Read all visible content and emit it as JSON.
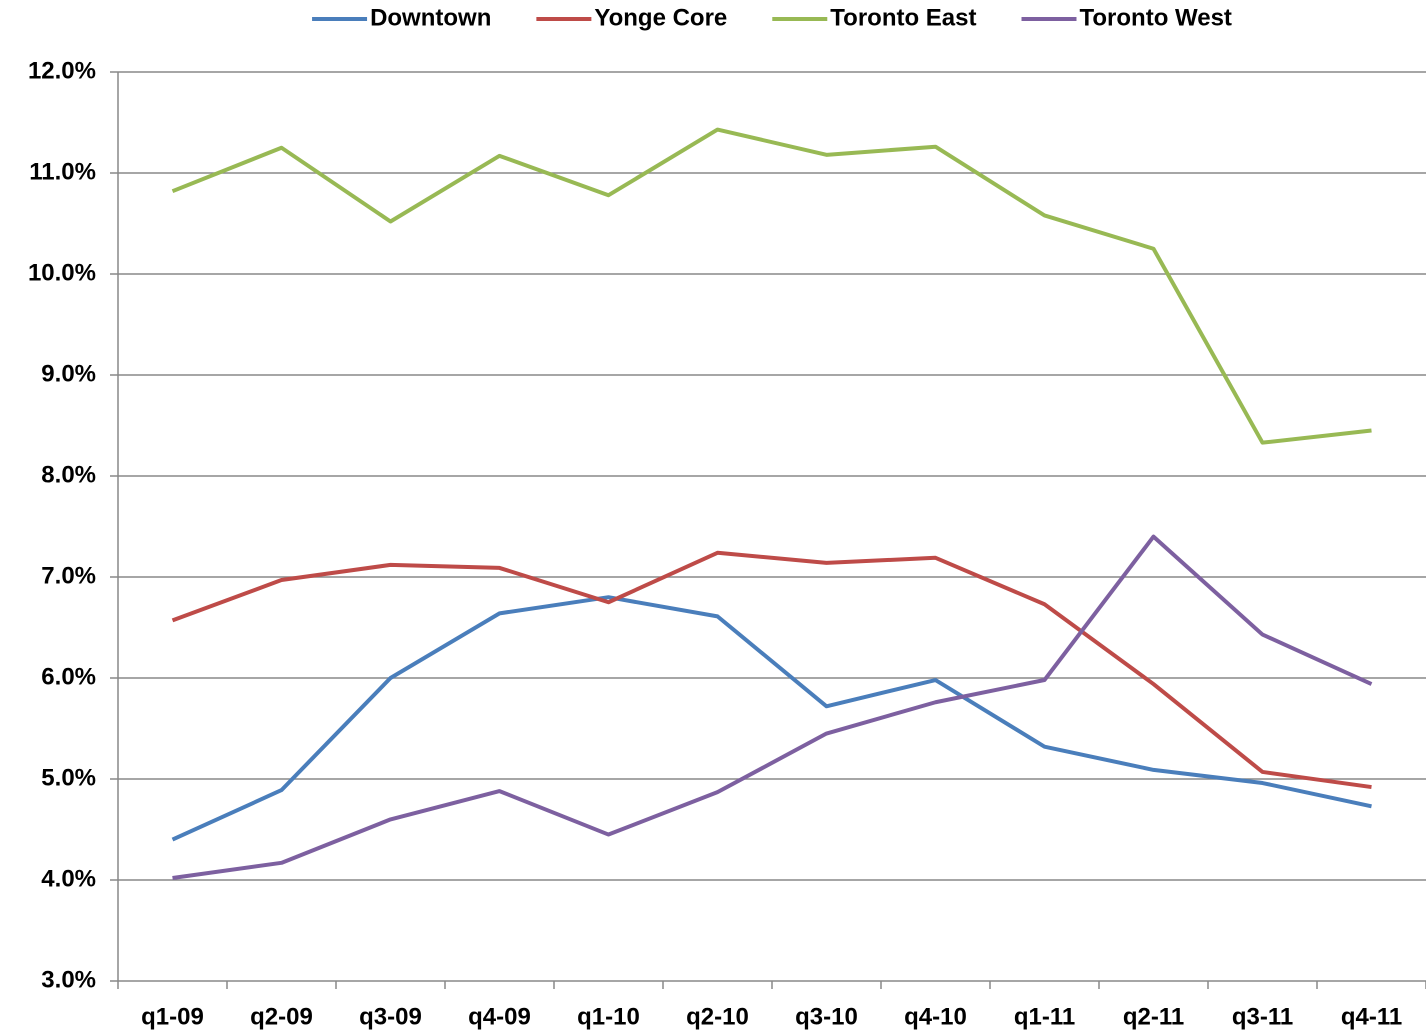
{
  "chart_data": {
    "type": "line",
    "categories": [
      "q1-09",
      "q2-09",
      "q3-09",
      "q4-09",
      "q1-10",
      "q2-10",
      "q3-10",
      "q4-10",
      "q1-11",
      "q2-11",
      "q3-11",
      "q4-11"
    ],
    "series": [
      {
        "name": "Downtown",
        "color": "#4a7ebb",
        "values": [
          4.4,
          4.89,
          6.0,
          6.64,
          6.8,
          6.61,
          5.72,
          5.98,
          5.32,
          5.09,
          4.96,
          4.73
        ]
      },
      {
        "name": "Yonge Core",
        "color": "#be4b48",
        "values": [
          6.57,
          6.97,
          7.12,
          7.09,
          6.75,
          7.24,
          7.14,
          7.19,
          6.73,
          5.94,
          5.07,
          4.92
        ]
      },
      {
        "name": "Toronto East",
        "color": "#98b954",
        "values": [
          10.82,
          11.25,
          10.52,
          11.17,
          10.78,
          11.43,
          11.18,
          11.26,
          10.58,
          10.25,
          8.33,
          8.45
        ]
      },
      {
        "name": "Toronto West",
        "color": "#7d60a0",
        "values": [
          4.02,
          4.17,
          4.6,
          4.88,
          4.45,
          4.87,
          5.45,
          5.76,
          5.98,
          7.4,
          6.43,
          5.94
        ]
      }
    ],
    "ylim": [
      3,
      12
    ],
    "yticks": [
      {
        "value": 3,
        "label": "3.0%"
      },
      {
        "value": 4,
        "label": "4.0%"
      },
      {
        "value": 5,
        "label": "5.0%"
      },
      {
        "value": 6,
        "label": "6.0%"
      },
      {
        "value": 7,
        "label": "7.0%"
      },
      {
        "value": 8,
        "label": "8.0%"
      },
      {
        "value": 9,
        "label": "9.0%"
      },
      {
        "value": 10,
        "label": "10.0%"
      },
      {
        "value": 11,
        "label": "11.0%"
      },
      {
        "value": 12,
        "label": "12.0%"
      }
    ],
    "grid": true,
    "legend": "top"
  }
}
